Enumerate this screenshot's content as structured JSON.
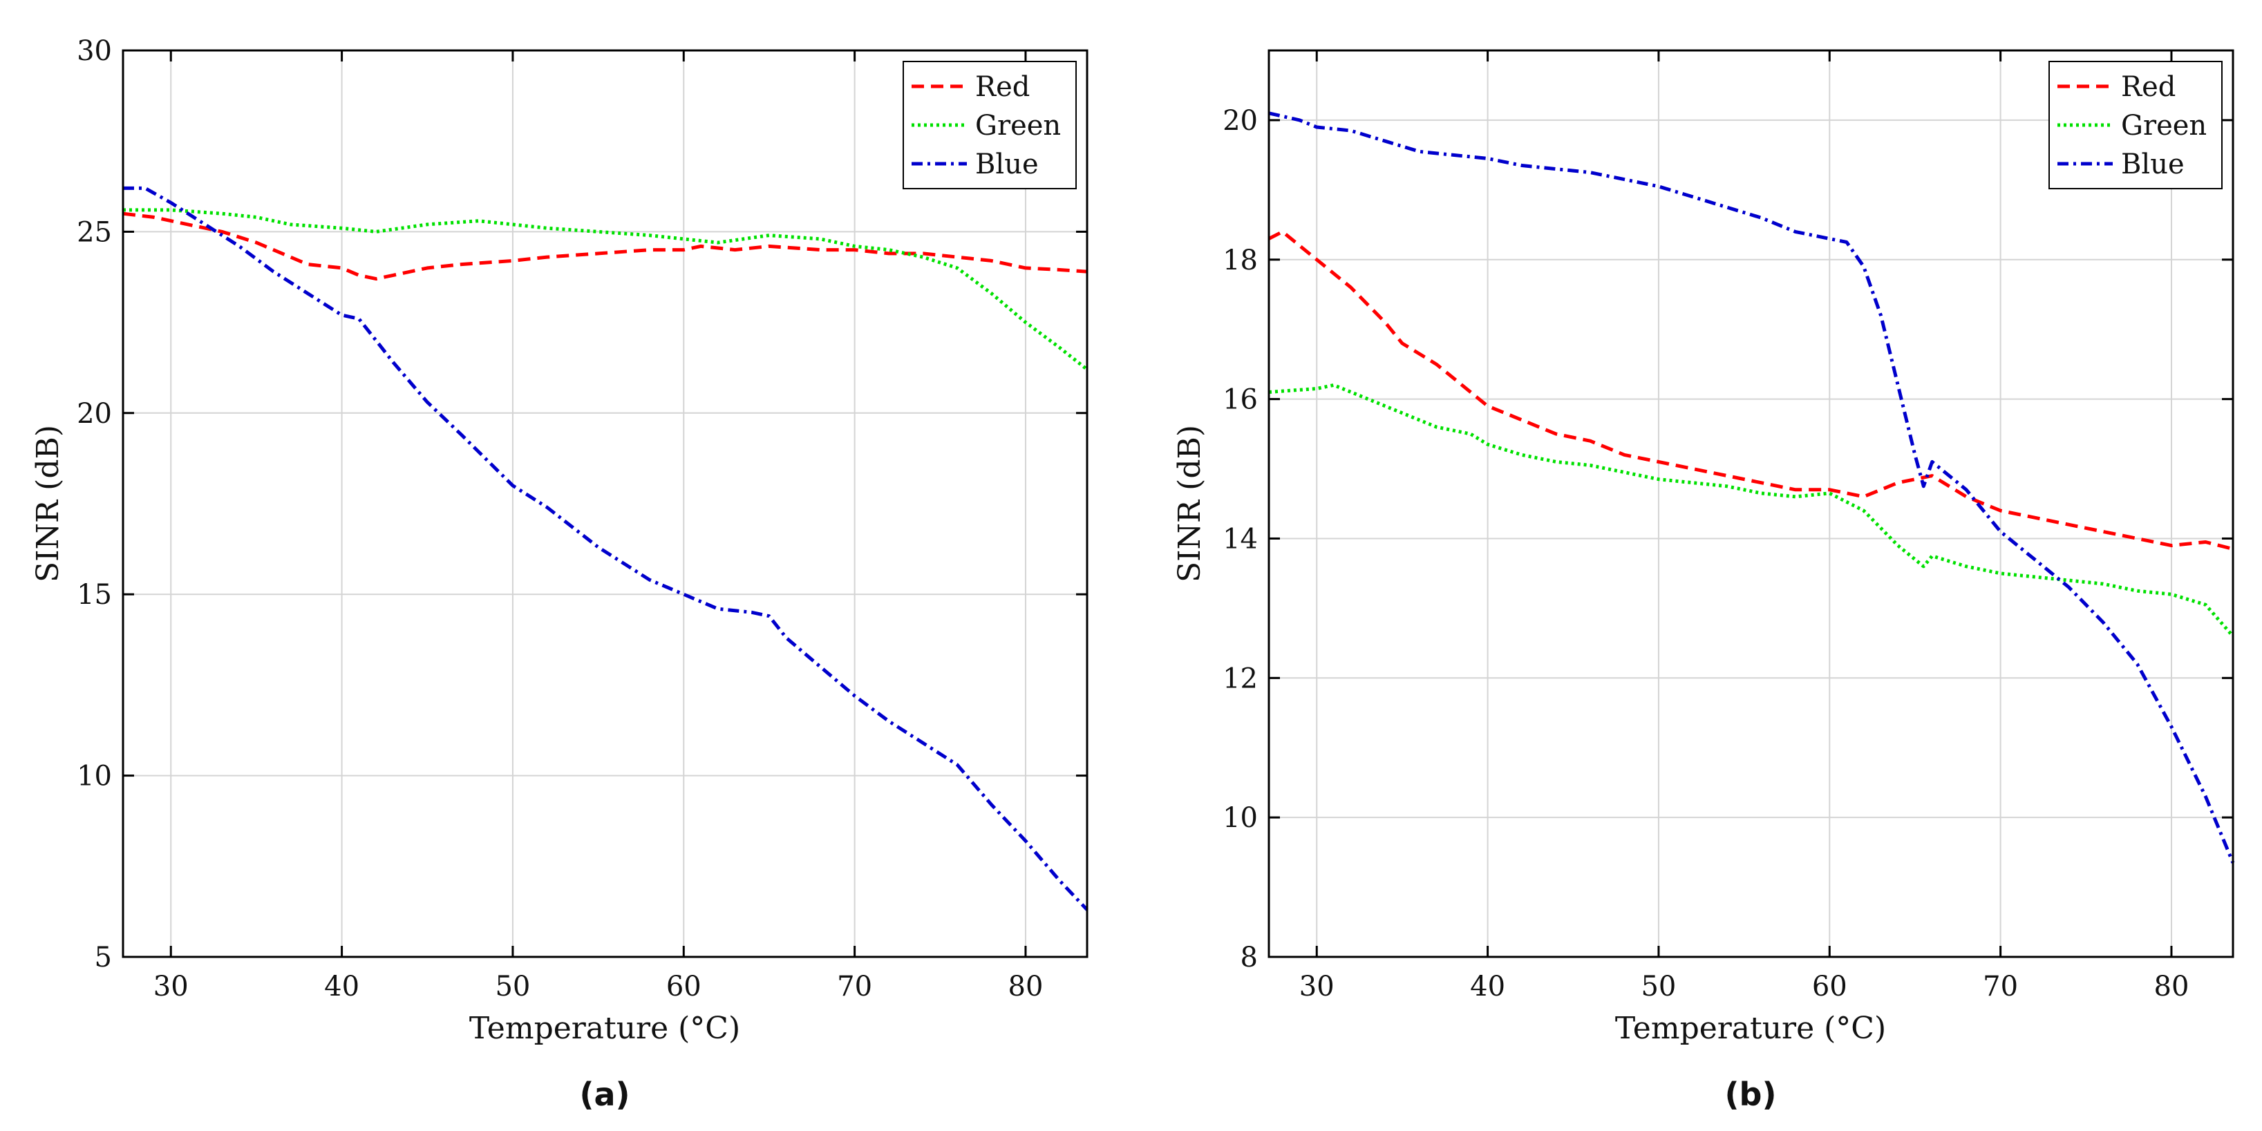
{
  "chart_data": [
    {
      "type": "line",
      "panel_label": "(a)",
      "title": "",
      "xlabel": "Temperature (°C)",
      "ylabel": "SINR (dB)",
      "xlim": [
        27.2,
        83.6
      ],
      "ylim": [
        5,
        30
      ],
      "xticks": [
        30,
        40,
        50,
        60,
        70,
        80
      ],
      "yticks": [
        5,
        10,
        15,
        20,
        25,
        30
      ],
      "grid": true,
      "legend_position": "top-right",
      "series": [
        {
          "name": "Red",
          "color": "#ff0000",
          "style": "dashed",
          "x": [
            27.2,
            29,
            31,
            33,
            35,
            37,
            38,
            40,
            41,
            42,
            43,
            45,
            47,
            50,
            52,
            55,
            58,
            60,
            61,
            63,
            65,
            68,
            70,
            72,
            74,
            76,
            78,
            80,
            82,
            83.6
          ],
          "y": [
            25.5,
            25.4,
            25.2,
            25.0,
            24.7,
            24.3,
            24.1,
            24.0,
            23.8,
            23.7,
            23.8,
            24.0,
            24.1,
            24.2,
            24.3,
            24.4,
            24.5,
            24.5,
            24.6,
            24.5,
            24.6,
            24.5,
            24.5,
            24.4,
            24.4,
            24.3,
            24.2,
            24.0,
            23.95,
            23.9
          ]
        },
        {
          "name": "Green",
          "color": "#00e000",
          "style": "dotted",
          "x": [
            27.2,
            30,
            33,
            35,
            37,
            40,
            42,
            45,
            48,
            50,
            52,
            55,
            58,
            60,
            62,
            65,
            68,
            70,
            72,
            74,
            76,
            78,
            80,
            82,
            83.6
          ],
          "y": [
            25.6,
            25.6,
            25.5,
            25.4,
            25.2,
            25.1,
            25.0,
            25.2,
            25.3,
            25.2,
            25.1,
            25.0,
            24.9,
            24.8,
            24.7,
            24.9,
            24.8,
            24.6,
            24.5,
            24.3,
            24.0,
            23.3,
            22.5,
            21.8,
            21.2
          ]
        },
        {
          "name": "Blue",
          "color": "#0000cc",
          "style": "dashdot",
          "x": [
            27.2,
            28.5,
            30,
            32,
            34,
            36,
            38,
            40,
            41,
            42,
            43,
            45,
            47,
            50,
            52,
            55,
            58,
            60,
            62,
            64,
            65,
            66,
            68,
            70,
            72,
            74,
            76,
            78,
            80,
            82,
            83.6
          ],
          "y": [
            26.2,
            26.2,
            25.8,
            25.2,
            24.6,
            23.9,
            23.3,
            22.7,
            22.6,
            22.0,
            21.4,
            20.3,
            19.4,
            18.0,
            17.4,
            16.3,
            15.4,
            15.0,
            14.6,
            14.5,
            14.4,
            13.8,
            13.0,
            12.2,
            11.5,
            10.9,
            10.3,
            9.2,
            8.2,
            7.1,
            6.3
          ]
        }
      ]
    },
    {
      "type": "line",
      "panel_label": "(b)",
      "title": "",
      "xlabel": "Temperature (°C)",
      "ylabel": "SINR (dB)",
      "xlim": [
        27.2,
        83.6
      ],
      "ylim": [
        8,
        21
      ],
      "xticks": [
        30,
        40,
        50,
        60,
        70,
        80
      ],
      "yticks": [
        8,
        10,
        12,
        14,
        16,
        18,
        20
      ],
      "grid": true,
      "legend_position": "top-right",
      "series": [
        {
          "name": "Red",
          "color": "#ff0000",
          "style": "dashed",
          "x": [
            27.2,
            28,
            30,
            32,
            34,
            35,
            37,
            38,
            40,
            42,
            44,
            46,
            48,
            50,
            52,
            54,
            56,
            58,
            60,
            62,
            64,
            66,
            68,
            70,
            72,
            74,
            76,
            78,
            80,
            82,
            83.6
          ],
          "y": [
            18.3,
            18.4,
            18.0,
            17.6,
            17.1,
            16.8,
            16.5,
            16.3,
            15.9,
            15.7,
            15.5,
            15.4,
            15.2,
            15.1,
            15.0,
            14.9,
            14.8,
            14.7,
            14.7,
            14.6,
            14.8,
            14.9,
            14.6,
            14.4,
            14.3,
            14.2,
            14.1,
            14.0,
            13.9,
            13.95,
            13.85
          ]
        },
        {
          "name": "Green",
          "color": "#00e000",
          "style": "dotted",
          "x": [
            27.2,
            30,
            31,
            33,
            35,
            37,
            39,
            40,
            42,
            44,
            46,
            48,
            50,
            52,
            54,
            56,
            58,
            60,
            62,
            64,
            65.5,
            66,
            68,
            70,
            72,
            74,
            76,
            78,
            80,
            82,
            83.6
          ],
          "y": [
            16.1,
            16.15,
            16.2,
            16.0,
            15.8,
            15.6,
            15.5,
            15.35,
            15.2,
            15.1,
            15.05,
            14.95,
            14.85,
            14.8,
            14.75,
            14.65,
            14.6,
            14.65,
            14.4,
            13.9,
            13.6,
            13.75,
            13.6,
            13.5,
            13.45,
            13.4,
            13.35,
            13.25,
            13.2,
            13.05,
            12.6
          ]
        },
        {
          "name": "Blue",
          "color": "#0000cc",
          "style": "dashdot",
          "x": [
            27.2,
            29,
            30,
            32,
            34,
            36,
            38,
            40,
            42,
            44,
            46,
            48,
            50,
            52,
            54,
            56,
            58,
            60,
            61,
            62,
            63,
            64,
            65,
            65.5,
            66,
            68,
            70,
            72,
            74,
            76,
            78,
            80,
            82,
            83.6
          ],
          "y": [
            20.1,
            20.0,
            19.9,
            19.85,
            19.7,
            19.55,
            19.5,
            19.45,
            19.35,
            19.3,
            19.25,
            19.15,
            19.05,
            18.9,
            18.75,
            18.6,
            18.4,
            18.3,
            18.25,
            17.9,
            17.2,
            16.2,
            15.2,
            14.75,
            15.1,
            14.7,
            14.1,
            13.7,
            13.3,
            12.8,
            12.2,
            11.3,
            10.3,
            9.35
          ]
        }
      ]
    }
  ]
}
